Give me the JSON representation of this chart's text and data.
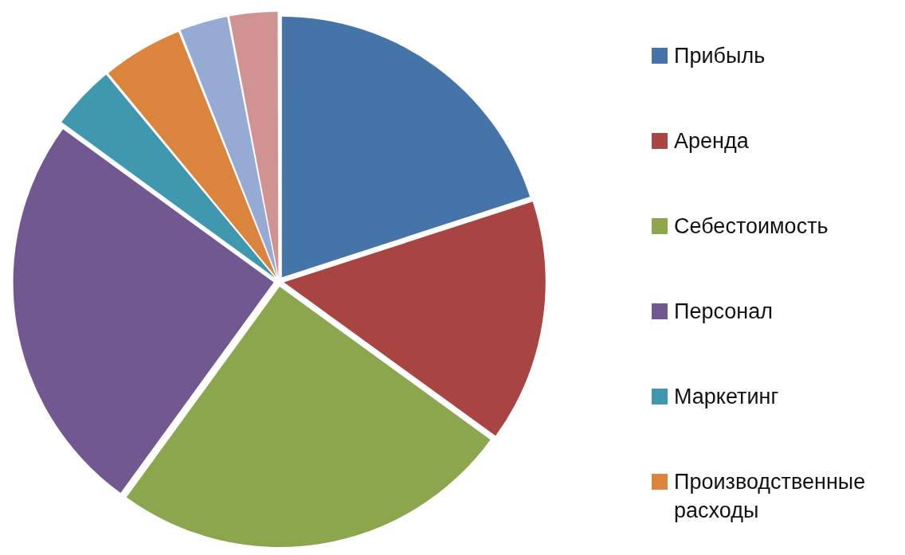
{
  "chart_data": {
    "type": "pie",
    "categories": [
      "Прибыль",
      "Аренда",
      "Себестоимость",
      "Персонал",
      "Маркетинг",
      "Производственные расходы",
      null,
      null
    ],
    "values": [
      20,
      15,
      25,
      25,
      4,
      5,
      3,
      3
    ],
    "colors": [
      "#4474a8",
      "#a84442",
      "#8ba64d",
      "#715891",
      "#3f98ad",
      "#db843d",
      "#95abd4",
      "#d19391"
    ],
    "legend": "right"
  }
}
